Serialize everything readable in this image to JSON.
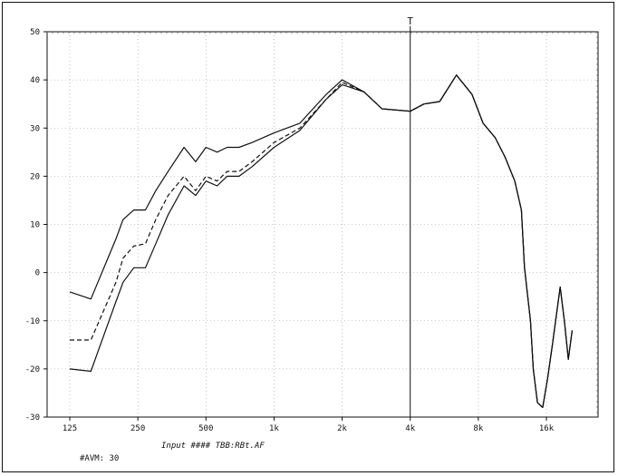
{
  "chart_data": {
    "type": "line",
    "title": "",
    "xlabel": "",
    "ylabel": "",
    "x_scale": "log",
    "grid": "dotted",
    "ylim": [
      -30,
      50
    ],
    "x_ticks": [
      {
        "value": 125,
        "label": "125"
      },
      {
        "value": 250,
        "label": "250"
      },
      {
        "value": 500,
        "label": "500"
      },
      {
        "value": 1000,
        "label": "1k"
      },
      {
        "value": 2000,
        "label": "2k"
      },
      {
        "value": 4000,
        "label": "4k"
      },
      {
        "value": 8000,
        "label": "8k"
      },
      {
        "value": 16000,
        "label": "16k"
      }
    ],
    "y_ticks": [
      {
        "value": 50,
        "label": "50"
      },
      {
        "value": 40,
        "label": "40"
      },
      {
        "value": 30,
        "label": "30"
      },
      {
        "value": 20,
        "label": "20"
      },
      {
        "value": 10,
        "label": "10"
      },
      {
        "value": 0,
        "label": "0"
      },
      {
        "value": -10,
        "label": "-10"
      },
      {
        "value": -20,
        "label": "-20"
      },
      {
        "value": -30,
        "label": "-30"
      }
    ],
    "marker": {
      "x": 4000,
      "label": "T"
    },
    "series": [
      {
        "style": "solid",
        "points": [
          [
            125,
            -4
          ],
          [
            155,
            -5.5
          ],
          [
            200,
            7
          ],
          [
            215,
            11
          ],
          [
            240,
            13
          ],
          [
            270,
            13
          ],
          [
            300,
            17
          ],
          [
            340,
            21
          ],
          [
            400,
            26
          ],
          [
            450,
            23
          ],
          [
            500,
            26
          ],
          [
            560,
            25
          ],
          [
            620,
            26
          ],
          [
            700,
            26
          ],
          [
            800,
            27
          ],
          [
            1000,
            29
          ],
          [
            1300,
            31
          ],
          [
            1700,
            37
          ],
          [
            2000,
            40
          ],
          [
            2500,
            37.5
          ],
          [
            3000,
            34
          ],
          [
            4000,
            33.5
          ],
          [
            4600,
            35
          ],
          [
            5400,
            35.5
          ],
          [
            6400,
            41
          ],
          [
            7500,
            37
          ],
          [
            8400,
            31
          ],
          [
            9500,
            28
          ],
          [
            10500,
            24
          ],
          [
            11600,
            19
          ],
          [
            12400,
            13
          ],
          [
            12800,
            1
          ],
          [
            13600,
            -10
          ],
          [
            14000,
            -20
          ],
          [
            14600,
            -27
          ],
          [
            15400,
            -28
          ],
          [
            16200,
            -22
          ],
          [
            17000,
            -15
          ],
          [
            17800,
            -8
          ],
          [
            18400,
            -3
          ],
          [
            19200,
            -10
          ],
          [
            20000,
            -18
          ],
          [
            20800,
            -12
          ]
        ]
      },
      {
        "style": "dashed",
        "points": [
          [
            125,
            -14
          ],
          [
            155,
            -14
          ],
          [
            200,
            -2
          ],
          [
            215,
            3
          ],
          [
            240,
            5.5
          ],
          [
            270,
            6
          ],
          [
            300,
            11
          ],
          [
            340,
            16
          ],
          [
            400,
            20
          ],
          [
            450,
            17
          ],
          [
            500,
            20
          ],
          [
            560,
            19
          ],
          [
            620,
            21
          ],
          [
            700,
            21
          ],
          [
            800,
            23
          ],
          [
            1000,
            27
          ],
          [
            1300,
            30
          ],
          [
            1700,
            36
          ],
          [
            2000,
            39.5
          ],
          [
            2500,
            37.5
          ],
          [
            3000,
            34
          ],
          [
            4000,
            33.5
          ],
          [
            4600,
            35
          ],
          [
            5400,
            35.5
          ],
          [
            6400,
            41
          ],
          [
            7500,
            37
          ],
          [
            8400,
            31
          ],
          [
            9500,
            28
          ],
          [
            10500,
            24
          ],
          [
            11600,
            19
          ],
          [
            12400,
            13
          ],
          [
            12800,
            1
          ],
          [
            13600,
            -10
          ],
          [
            14000,
            -20
          ],
          [
            14600,
            -27
          ],
          [
            15400,
            -28
          ],
          [
            16200,
            -22
          ],
          [
            17000,
            -15
          ],
          [
            17800,
            -8
          ],
          [
            18400,
            -3
          ],
          [
            19200,
            -10
          ],
          [
            20000,
            -18
          ],
          [
            20800,
            -12
          ]
        ]
      },
      {
        "style": "solid",
        "points": [
          [
            125,
            -20
          ],
          [
            155,
            -20.5
          ],
          [
            200,
            -6
          ],
          [
            215,
            -2
          ],
          [
            240,
            1
          ],
          [
            270,
            1
          ],
          [
            300,
            6
          ],
          [
            340,
            12
          ],
          [
            400,
            18
          ],
          [
            450,
            16
          ],
          [
            500,
            19
          ],
          [
            560,
            18
          ],
          [
            620,
            20
          ],
          [
            700,
            20
          ],
          [
            800,
            22
          ],
          [
            1000,
            26
          ],
          [
            1300,
            29.5
          ],
          [
            1700,
            36
          ],
          [
            2000,
            39
          ],
          [
            2500,
            37.5
          ],
          [
            3000,
            34
          ],
          [
            4000,
            33.5
          ],
          [
            4600,
            35
          ],
          [
            5400,
            35.5
          ],
          [
            6400,
            41
          ],
          [
            7500,
            37
          ],
          [
            8400,
            31
          ],
          [
            9500,
            28
          ],
          [
            10500,
            24
          ],
          [
            11600,
            19
          ],
          [
            12400,
            13
          ],
          [
            12800,
            1
          ],
          [
            13600,
            -10
          ],
          [
            14000,
            -20
          ],
          [
            14600,
            -27
          ],
          [
            15400,
            -28
          ],
          [
            16200,
            -22
          ],
          [
            17000,
            -15
          ],
          [
            17800,
            -8
          ],
          [
            18400,
            -3
          ],
          [
            19200,
            -10
          ],
          [
            20000,
            -18
          ],
          [
            20800,
            -12
          ]
        ]
      }
    ]
  },
  "captions": {
    "input": "Input ####  TBB:RBt.AF",
    "average": "#AVM: 30"
  }
}
